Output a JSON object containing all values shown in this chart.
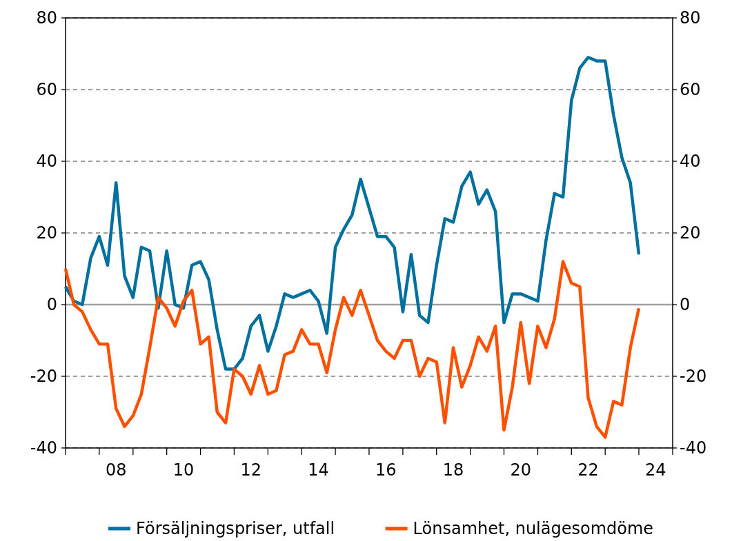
{
  "chart_data": {
    "type": "line",
    "x": [
      "2007-01",
      "2007-04",
      "2007-07",
      "2007-10",
      "2008-01",
      "2008-04",
      "2008-07",
      "2008-10",
      "2009-01",
      "2009-04",
      "2009-07",
      "2009-10",
      "2010-01",
      "2010-04",
      "2010-07",
      "2010-10",
      "2011-01",
      "2011-04",
      "2011-07",
      "2011-10",
      "2012-01",
      "2012-04",
      "2012-07",
      "2012-10",
      "2013-01",
      "2013-04",
      "2013-07",
      "2013-10",
      "2014-01",
      "2014-04",
      "2014-07",
      "2014-10",
      "2015-01",
      "2015-04",
      "2015-07",
      "2015-10",
      "2016-01",
      "2016-04",
      "2016-07",
      "2016-10",
      "2017-01",
      "2017-04",
      "2017-07",
      "2017-10",
      "2018-01",
      "2018-04",
      "2018-07",
      "2018-10",
      "2019-01",
      "2019-04",
      "2019-07",
      "2019-10",
      "2020-01",
      "2020-04",
      "2020-07",
      "2020-10",
      "2021-01",
      "2021-04",
      "2021-07",
      "2021-10",
      "2022-01",
      "2022-04",
      "2022-07",
      "2022-10",
      "2023-01",
      "2023-04",
      "2023-07",
      "2023-10",
      "2024-01"
    ],
    "series": [
      {
        "name": "Försäljningspriser, utfall",
        "color": "#00709e",
        "values": [
          5,
          1,
          0,
          13,
          19,
          11,
          34,
          8,
          2,
          16,
          15,
          -1,
          15,
          0,
          -1,
          11,
          12,
          7,
          -7,
          -18,
          -18,
          -15,
          -6,
          -3,
          -13,
          -6,
          3,
          2,
          3,
          4,
          1,
          -8,
          16,
          21,
          25,
          35,
          27,
          19,
          19,
          16,
          -2,
          14,
          -3,
          -5,
          11,
          24,
          23,
          33,
          37,
          28,
          32,
          26,
          -5,
          3,
          3,
          2,
          1,
          18,
          31,
          30,
          57,
          66,
          69,
          68,
          68,
          53,
          41,
          34,
          14
        ]
      },
      {
        "name": "Lönsamhet, nulägesomdöme",
        "color": "#ff5000",
        "values": [
          10,
          0,
          -2,
          -7,
          -11,
          -11,
          -29,
          -34,
          -31,
          -25,
          -12,
          2,
          -1,
          -6,
          1,
          4,
          -11,
          -9,
          -30,
          -33,
          -18,
          -20,
          -25,
          -17,
          -25,
          -24,
          -14,
          -13,
          -7,
          -11,
          -11,
          -19,
          -7,
          2,
          -3,
          4,
          -3,
          -10,
          -13,
          -15,
          -10,
          -10,
          -20,
          -15,
          -16,
          -33,
          -12,
          -23,
          -17,
          -9,
          -13,
          -6,
          -35,
          -23,
          -5,
          -22,
          -6,
          -12,
          -4,
          12,
          6,
          5,
          -26,
          -34,
          -37,
          -27,
          -28,
          -12,
          -1
        ]
      }
    ],
    "xlim": [
      "2007-01",
      "2025-01"
    ],
    "xticks": [
      {
        "value": "2007-01",
        "label": null
      },
      {
        "value": "2008-01",
        "label": null
      },
      {
        "value": "2009-01",
        "label": null
      },
      {
        "value": "2010-01",
        "label": null
      },
      {
        "value": "2011-01",
        "label": null
      },
      {
        "value": "2012-01",
        "label": null
      },
      {
        "value": "2013-01",
        "label": null
      },
      {
        "value": "2014-01",
        "label": null
      },
      {
        "value": "2015-01",
        "label": null
      },
      {
        "value": "2016-01",
        "label": null
      },
      {
        "value": "2017-01",
        "label": null
      },
      {
        "value": "2018-01",
        "label": null
      },
      {
        "value": "2019-01",
        "label": null
      },
      {
        "value": "2020-01",
        "label": null
      },
      {
        "value": "2021-01",
        "label": null
      },
      {
        "value": "2022-01",
        "label": null
      },
      {
        "value": "2023-01",
        "label": null
      },
      {
        "value": "2024-01",
        "label": null
      },
      {
        "value": "2025-01",
        "label": null
      },
      {
        "value": "2008-07",
        "label": "08"
      },
      {
        "value": "2010-07",
        "label": "10"
      },
      {
        "value": "2012-07",
        "label": "12"
      },
      {
        "value": "2014-07",
        "label": "14"
      },
      {
        "value": "2016-07",
        "label": "16"
      },
      {
        "value": "2018-07",
        "label": "18"
      },
      {
        "value": "2020-07",
        "label": "20"
      },
      {
        "value": "2022-07",
        "label": "22"
      },
      {
        "value": "2024-07",
        "label": "24"
      }
    ],
    "ylim": [
      -40,
      80
    ],
    "yticks": [
      -40,
      -20,
      0,
      20,
      40,
      60,
      80
    ],
    "y2lim": [
      -40,
      80
    ],
    "y2ticks": [
      -40,
      -20,
      0,
      20,
      40,
      60,
      80
    ],
    "ref_lines": [
      {
        "axis": "y",
        "value": 0,
        "color": "#a0a0a0",
        "line_style": "solid"
      }
    ],
    "grid": "y",
    "legend": "bottom",
    "line_style": "solid",
    "marker": "none"
  }
}
